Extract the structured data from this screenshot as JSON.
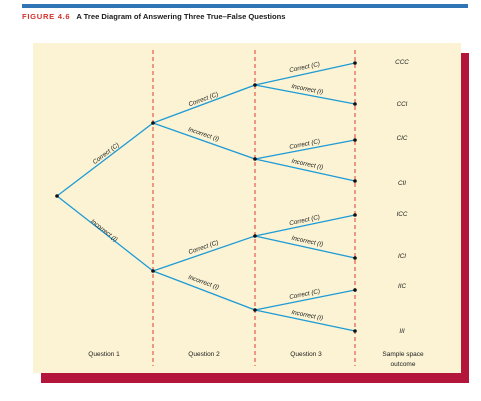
{
  "figure": {
    "label": "FIGURE 4.6",
    "title": "A Tree Diagram of Answering Three True–False Questions"
  },
  "colors": {
    "header_bar": "#2f74b5",
    "figure_label": "#d4312b",
    "panel_background": "#fbf3d3",
    "panel_shadow": "#b3163a",
    "branch": "#1e9bd6",
    "guide_lines": "#e03b33"
  },
  "stage_labels": [
    "Question 1",
    "Question 2",
    "Question 3",
    "Sample space",
    "outcome"
  ],
  "branch_labels": {
    "q1_correct": "Correct (C)",
    "q1_incorrect": "Incorrect (I)",
    "q2_correct_1": "Correct (C)",
    "q2_incorrect_1": "Incorrect (I)",
    "q2_correct_2": "Correct (C)",
    "q2_incorrect_2": "Incorrect (I)",
    "q3_correct_1": "Correct (C)",
    "q3_incorrect_1": "Incorrect (I)",
    "q3_correct_2": "Correct (C)",
    "q3_incorrect_2": "Incorrect (I)",
    "q3_correct_3": "Correct (C)",
    "q3_incorrect_3": "Incorrect (I)",
    "q3_correct_4": "Correct (C)",
    "q3_incorrect_4": "Incorrect (I)"
  },
  "outcomes": [
    "CCC",
    "CCI",
    "CIC",
    "CII",
    "ICC",
    "ICI",
    "IIC",
    "III"
  ]
}
